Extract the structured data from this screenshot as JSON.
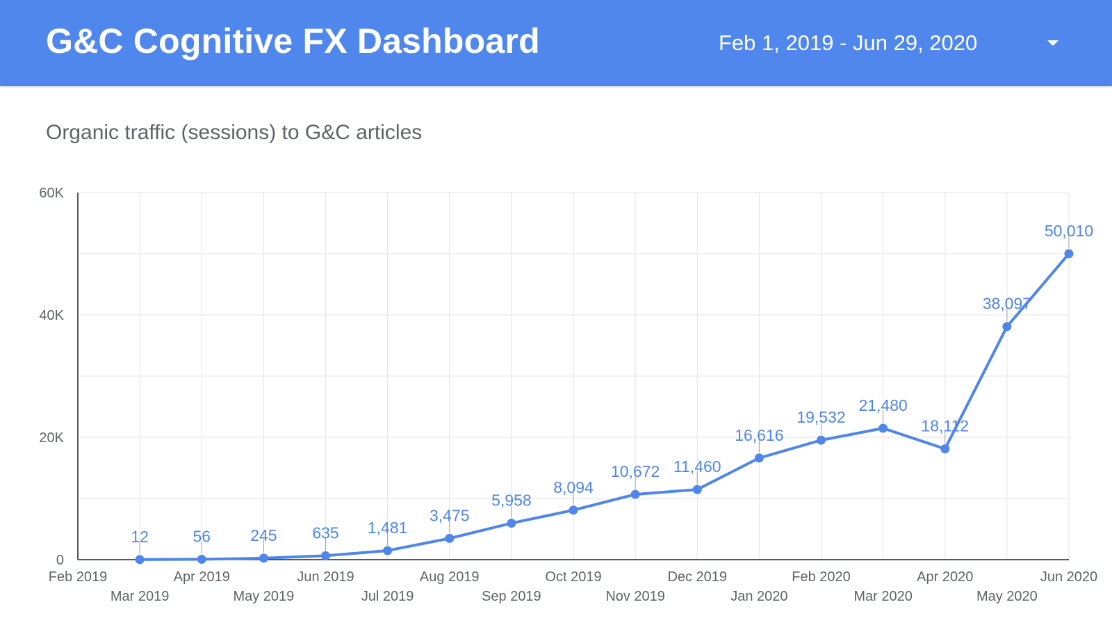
{
  "header": {
    "title": "G&C Cognitive FX Dashboard",
    "date_range": "Feb 1, 2019 - Jun 29, 2020",
    "dropdown_icon": "caret-down-icon"
  },
  "colors": {
    "header_bg": "#5087ec",
    "series": "#4f86e8",
    "grid": "#e3e3e3",
    "axis_text": "#5f6368"
  },
  "chart_data": {
    "type": "line",
    "title": "Organic traffic (sessions) to G&C articles",
    "xlabel": "",
    "ylabel": "",
    "x": [
      "Feb 2019",
      "Mar 2019",
      "Apr 2019",
      "May 2019",
      "Jun 2019",
      "Jul 2019",
      "Aug 2019",
      "Sep 2019",
      "Oct 2019",
      "Nov 2019",
      "Dec 2019",
      "Jan 2020",
      "Feb 2020",
      "Mar 2020",
      "Apr 2020",
      "May 2020",
      "Jun 2020"
    ],
    "series": [
      {
        "values": [
          null,
          12,
          56,
          245,
          635,
          1481,
          3475,
          5958,
          8094,
          10672,
          11460,
          16616,
          19532,
          21480,
          18112,
          38097,
          50010
        ],
        "labels": [
          "",
          "12",
          "56",
          "245",
          "635",
          "1,481",
          "3,475",
          "5,958",
          "8,094",
          "10,672",
          "11,460",
          "16,616",
          "19,532",
          "21,480",
          "18,112",
          "38,097",
          "50,010"
        ]
      }
    ],
    "ylim": [
      0,
      60000
    ],
    "y_ticks": [
      0,
      20000,
      40000,
      60000
    ],
    "y_tick_labels": [
      "0",
      "20K",
      "40K",
      "60K"
    ],
    "grid": true,
    "legend": "none"
  }
}
